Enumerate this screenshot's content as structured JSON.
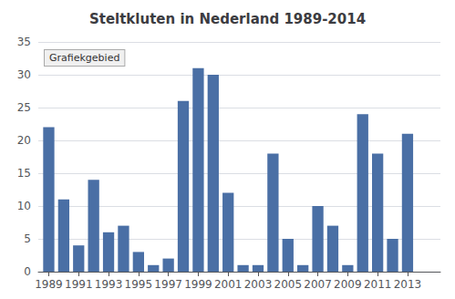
{
  "chart_data": {
    "type": "bar",
    "title": "Steltkluten in Nederland 1989-2014",
    "x": [
      1989,
      1990,
      1991,
      1992,
      1993,
      1994,
      1995,
      1996,
      1997,
      1998,
      1999,
      2000,
      2001,
      2002,
      2003,
      2004,
      2005,
      2006,
      2007,
      2008,
      2009,
      2010,
      2011,
      2012,
      2013,
      2014
    ],
    "values": [
      22,
      11,
      4,
      14,
      6,
      7,
      3,
      1,
      2,
      26,
      31,
      30,
      12,
      1,
      1,
      18,
      5,
      1,
      10,
      7,
      1,
      24,
      18,
      5,
      21,
      0
    ],
    "color": "#4a6fa5",
    "xlim": [
      1988.3,
      2015.2
    ],
    "xticks": [
      1989,
      1991,
      1993,
      1995,
      1997,
      1999,
      2001,
      2003,
      2005,
      2007,
      2009,
      2011,
      2013
    ],
    "ylim": [
      0,
      35
    ],
    "yticks": [
      0,
      5,
      10,
      15,
      20,
      25,
      30,
      35
    ],
    "grid": true,
    "annotations": [
      "Grafiekgebied"
    ]
  }
}
